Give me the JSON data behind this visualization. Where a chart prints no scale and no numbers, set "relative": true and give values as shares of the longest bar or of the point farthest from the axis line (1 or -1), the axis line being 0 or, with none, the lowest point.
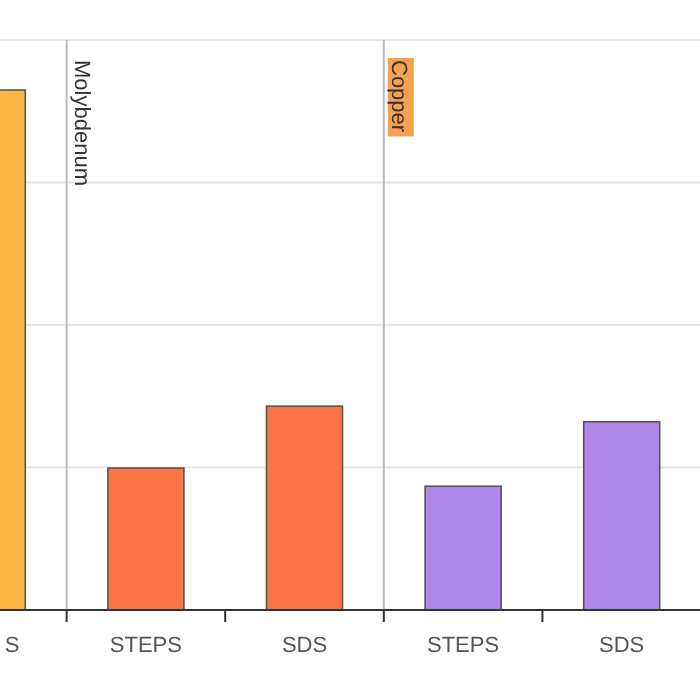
{
  "chart_data": {
    "type": "bar",
    "relative": true,
    "grid": true,
    "categories": [
      "S",
      "STEPS",
      "SDS",
      "STEPS",
      "SDS"
    ],
    "values": [
      1,
      0.273,
      0.392,
      0.238,
      0.362
    ],
    "colors": [
      "#fbb543",
      "#fd7446",
      "#fd7446",
      "#ae87e8",
      "#ae87e8"
    ],
    "annotations": [
      "Molybdenum",
      "Copper"
    ]
  }
}
